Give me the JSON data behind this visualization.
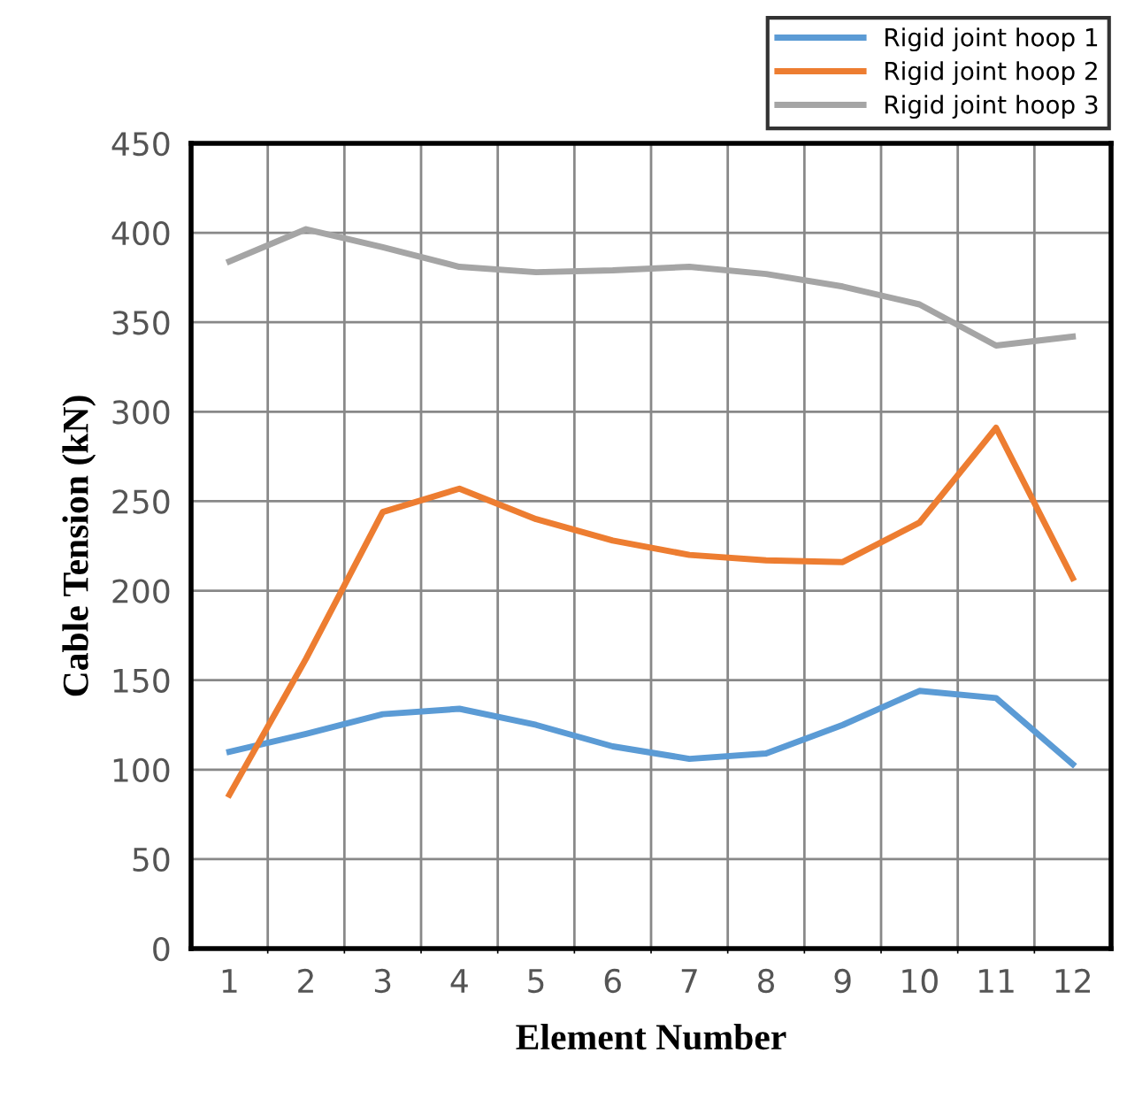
{
  "chart_data": {
    "type": "line",
    "xlabel": "Element Number",
    "ylabel": "Cable Tension (kN)",
    "categories": [
      "1",
      "2",
      "3",
      "4",
      "5",
      "6",
      "7",
      "8",
      "9",
      "10",
      "11",
      "12"
    ],
    "series": [
      {
        "name": "Rigid joint hoop 1",
        "color": "#5b9bd5",
        "values": [
          110,
          120,
          131,
          134,
          125,
          113,
          106,
          109,
          125,
          144,
          140,
          103
        ]
      },
      {
        "name": "Rigid joint hoop 2",
        "color": "#ed7d31",
        "values": [
          86,
          162,
          244,
          257,
          240,
          228,
          220,
          217,
          216,
          238,
          291,
          207
        ]
      },
      {
        "name": "Rigid joint hoop 3",
        "color": "#a5a5a5",
        "values": [
          384,
          402,
          392,
          381,
          378,
          379,
          381,
          377,
          370,
          360,
          337,
          342
        ]
      }
    ],
    "ylim": [
      0,
      450
    ],
    "yticks": [
      0,
      50,
      100,
      150,
      200,
      250,
      300,
      350,
      400,
      450
    ],
    "grid": true,
    "legend": "top right",
    "marker": "none"
  }
}
